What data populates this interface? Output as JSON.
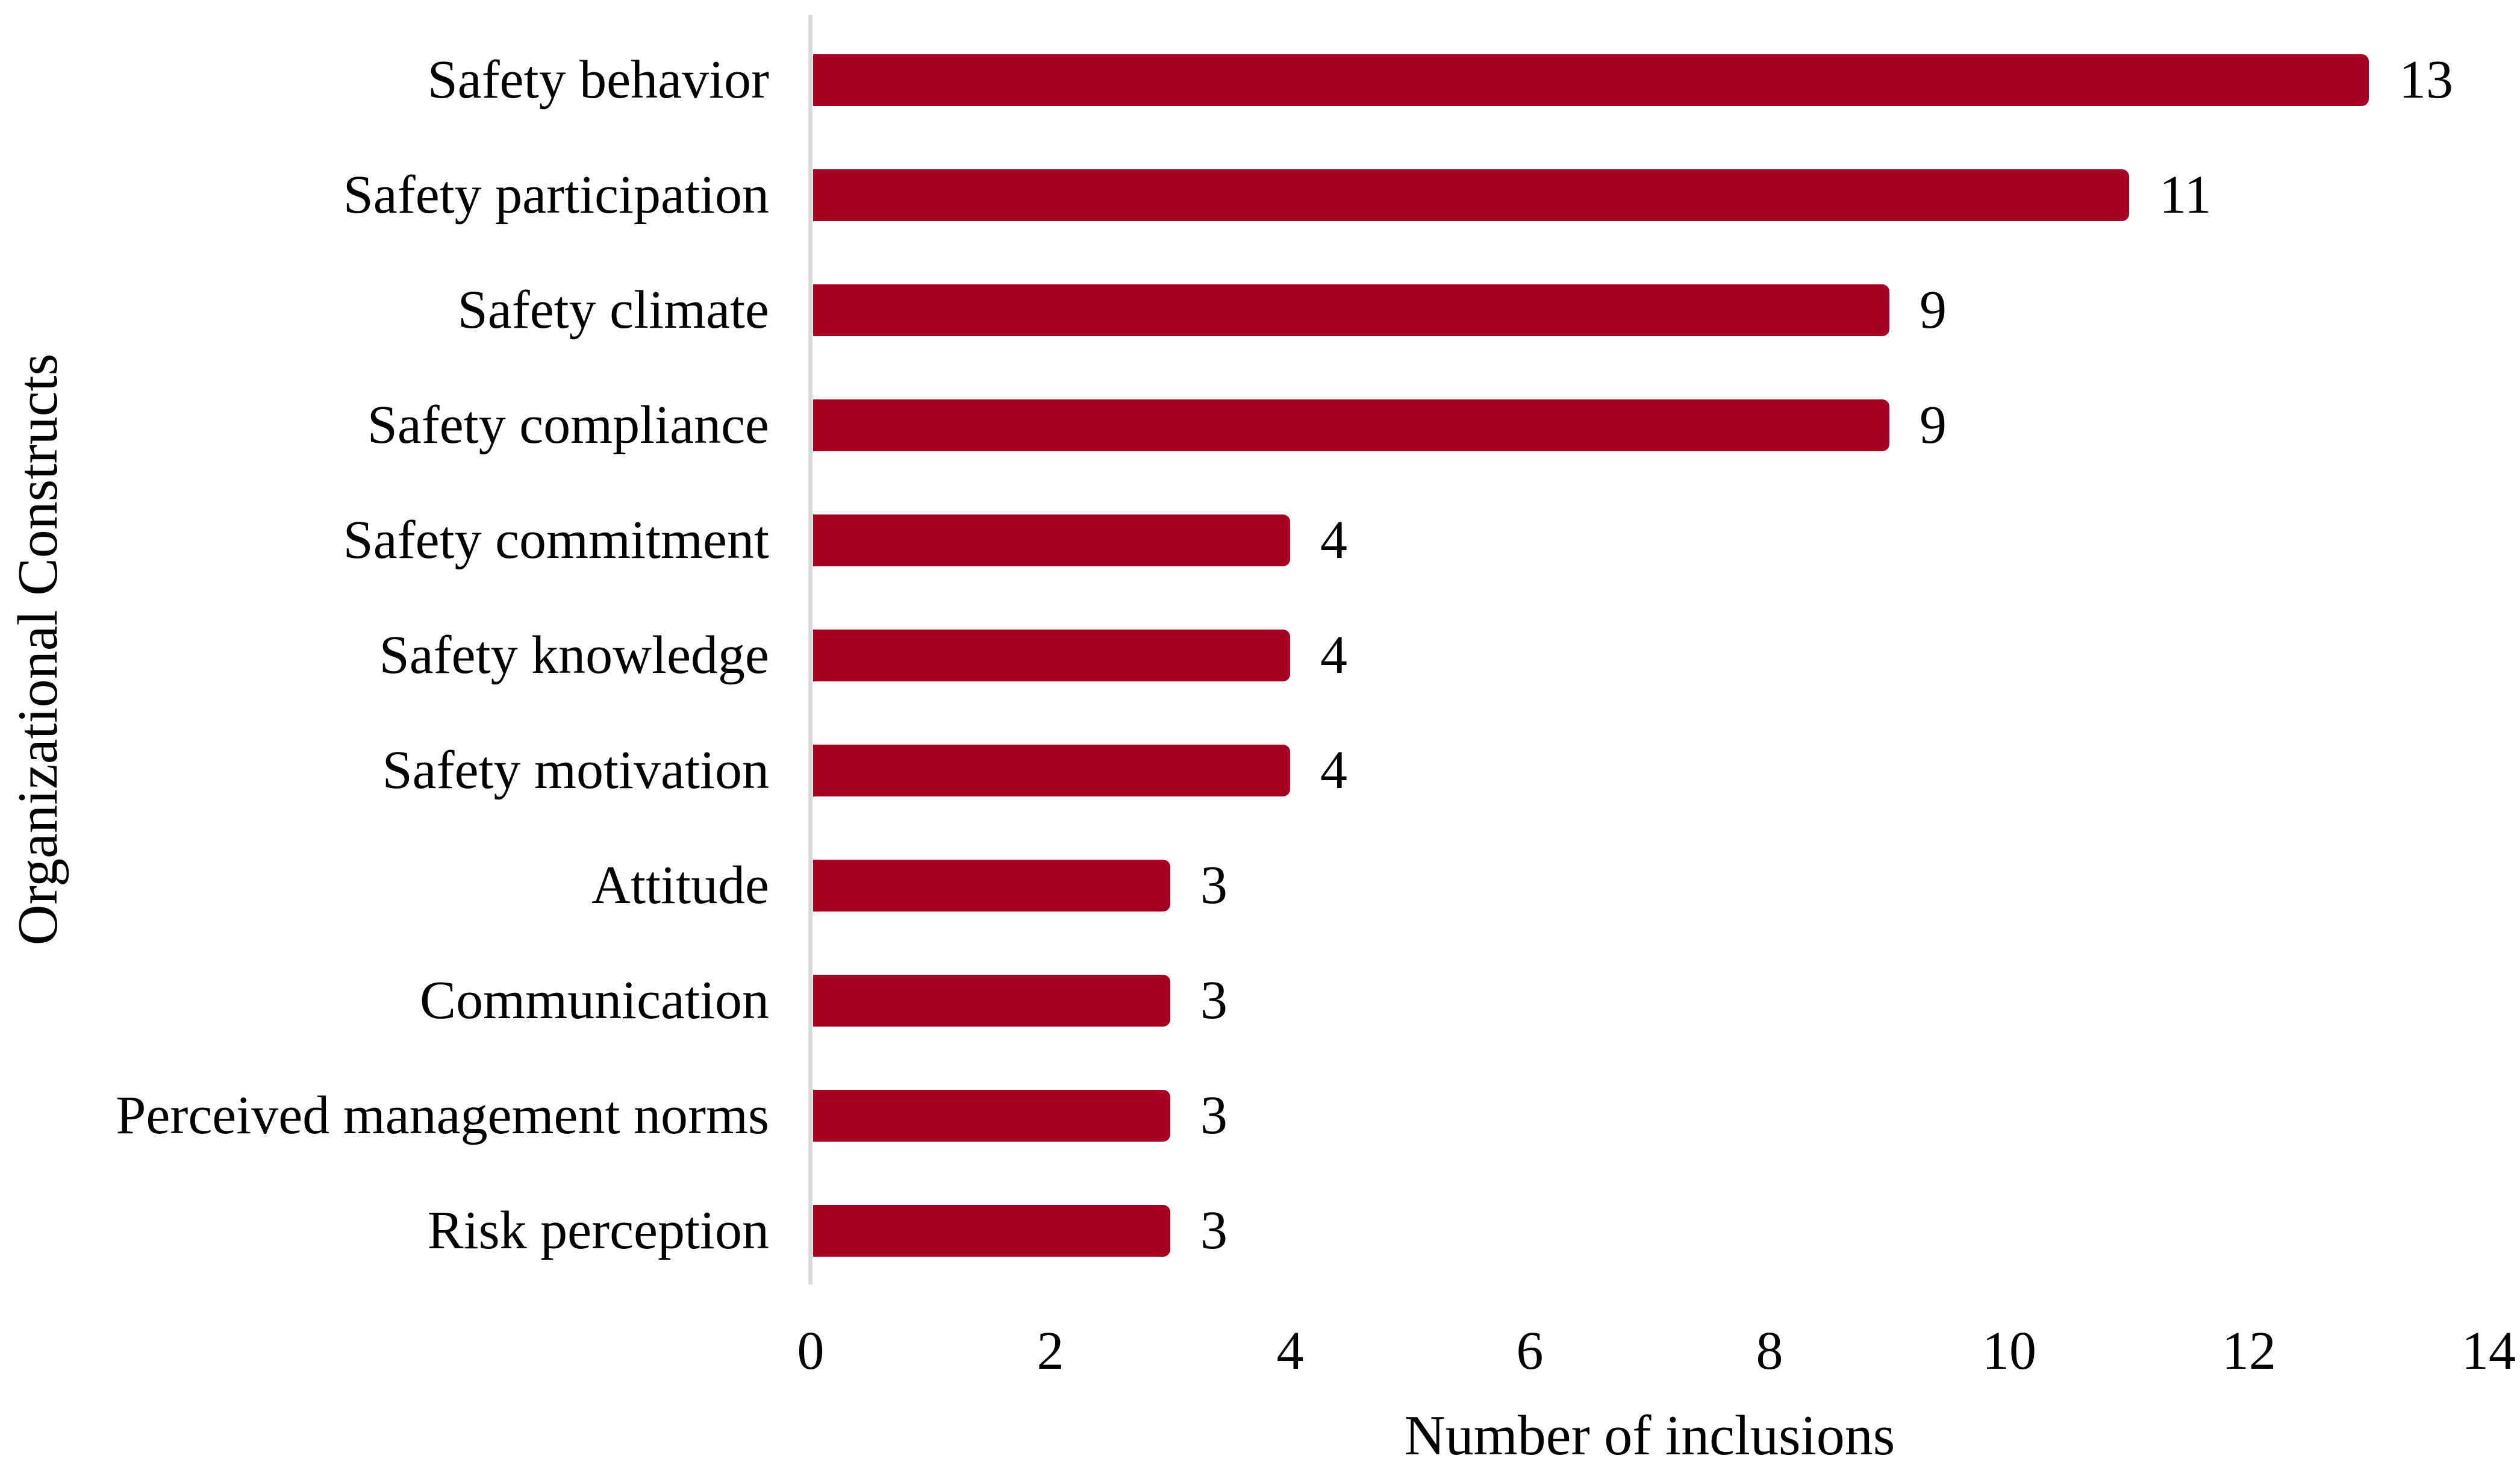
{
  "chart_data": {
    "type": "bar",
    "orientation": "horizontal",
    "title": "",
    "xlabel": "Number of inclusions",
    "ylabel": "Organizational Constructs",
    "categories": [
      "Safety behavior",
      "Safety participation",
      "Safety climate",
      "Safety compliance",
      "Safety commitment",
      "Safety knowledge",
      "Safety motivation",
      "Attitude",
      "Communication",
      "Perceived management norms",
      "Risk perception"
    ],
    "values": [
      13,
      11,
      9,
      9,
      4,
      4,
      4,
      3,
      3,
      3,
      3
    ],
    "xticks": [
      0,
      2,
      4,
      6,
      8,
      10,
      12,
      14
    ],
    "xlim": [
      0,
      14
    ],
    "grid": false,
    "legend": null,
    "data_labels_shown": true,
    "colors": {
      "bar": "#A50023",
      "axis_line": "#D9D9D9",
      "text": "#000000",
      "background": "#FFFFFF"
    }
  }
}
